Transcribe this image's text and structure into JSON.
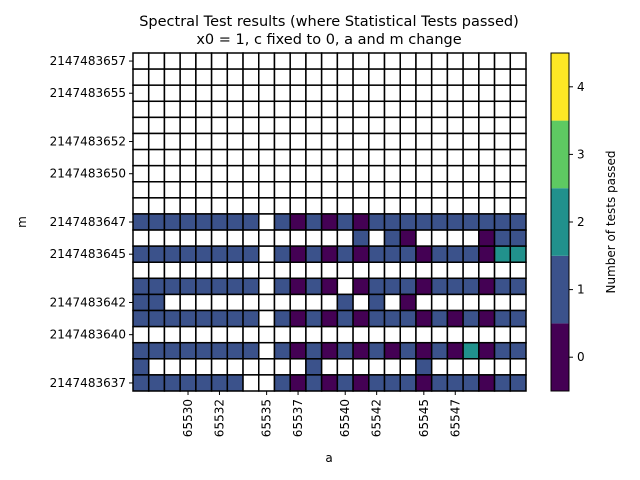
{
  "chart_data": {
    "type": "heatmap",
    "title_line1": "Spectral Test results (where Statistical Tests passed)",
    "title_line2": "x0 = 1, c fixed to 0, a and m change",
    "xlabel": "a",
    "ylabel": "m",
    "colorbar_label": "Number of tests passed",
    "colorbar_ticks": [
      "0",
      "1",
      "2",
      "3",
      "4"
    ],
    "colormap": [
      "#440154",
      "#3b528b",
      "#21918c",
      "#5ec962",
      "#fde725"
    ],
    "x_values": [
      65527,
      65528,
      65529,
      65530,
      65531,
      65532,
      65533,
      65534,
      65535,
      65536,
      65537,
      65538,
      65539,
      65540,
      65541,
      65542,
      65543,
      65544,
      65545,
      65546,
      65547,
      65548,
      65549,
      65550,
      65551
    ],
    "x_tick_labels": [
      {
        "value": 65530,
        "label": "65530"
      },
      {
        "value": 65532,
        "label": "65532"
      },
      {
        "value": 65535,
        "label": "65535"
      },
      {
        "value": 65537,
        "label": "65537"
      },
      {
        "value": 65540,
        "label": "65540"
      },
      {
        "value": 65542,
        "label": "65542"
      },
      {
        "value": 65545,
        "label": "65545"
      },
      {
        "value": 65547,
        "label": "65547"
      }
    ],
    "y_values": [
      2147483657,
      2147483656,
      2147483655,
      2147483654,
      2147483653,
      2147483652,
      2147483651,
      2147483650,
      2147483649,
      2147483648,
      2147483647,
      2147483646,
      2147483645,
      2147483644,
      2147483643,
      2147483642,
      2147483641,
      2147483640,
      2147483639,
      2147483638,
      2147483637
    ],
    "y_tick_labels": [
      {
        "value": 2147483657,
        "label": "2147483657"
      },
      {
        "value": 2147483655,
        "label": "2147483655"
      },
      {
        "value": 2147483652,
        "label": "2147483652"
      },
      {
        "value": 2147483650,
        "label": "2147483650"
      },
      {
        "value": 2147483647,
        "label": "2147483647"
      },
      {
        "value": 2147483645,
        "label": "2147483645"
      },
      {
        "value": 2147483642,
        "label": "2147483642"
      },
      {
        "value": 2147483640,
        "label": "2147483640"
      },
      {
        "value": 2147483637,
        "label": "2147483637"
      }
    ],
    "values": [
      [
        null,
        null,
        null,
        null,
        null,
        null,
        null,
        null,
        null,
        null,
        null,
        null,
        null,
        null,
        null,
        null,
        null,
        null,
        null,
        null,
        null,
        null,
        null,
        null,
        null
      ],
      [
        null,
        null,
        null,
        null,
        null,
        null,
        null,
        null,
        null,
        null,
        null,
        null,
        null,
        null,
        null,
        null,
        null,
        null,
        null,
        null,
        null,
        null,
        null,
        null,
        null
      ],
      [
        null,
        null,
        null,
        null,
        null,
        null,
        null,
        null,
        null,
        null,
        null,
        null,
        null,
        null,
        null,
        null,
        null,
        null,
        null,
        null,
        null,
        null,
        null,
        null,
        null
      ],
      [
        null,
        null,
        null,
        null,
        null,
        null,
        null,
        null,
        null,
        null,
        null,
        null,
        null,
        null,
        null,
        null,
        null,
        null,
        null,
        null,
        null,
        null,
        null,
        null,
        null
      ],
      [
        null,
        null,
        null,
        null,
        null,
        null,
        null,
        null,
        null,
        null,
        null,
        null,
        null,
        null,
        null,
        null,
        null,
        null,
        null,
        null,
        null,
        null,
        null,
        null,
        null
      ],
      [
        null,
        null,
        null,
        null,
        null,
        null,
        null,
        null,
        null,
        null,
        null,
        null,
        null,
        null,
        null,
        null,
        null,
        null,
        null,
        null,
        null,
        null,
        null,
        null,
        null
      ],
      [
        null,
        null,
        null,
        null,
        null,
        null,
        null,
        null,
        null,
        null,
        null,
        null,
        null,
        null,
        null,
        null,
        null,
        null,
        null,
        null,
        null,
        null,
        null,
        null,
        null
      ],
      [
        null,
        null,
        null,
        null,
        null,
        null,
        null,
        null,
        null,
        null,
        null,
        null,
        null,
        null,
        null,
        null,
        null,
        null,
        null,
        null,
        null,
        null,
        null,
        null,
        null
      ],
      [
        null,
        null,
        null,
        null,
        null,
        null,
        null,
        null,
        null,
        null,
        null,
        null,
        null,
        null,
        null,
        null,
        null,
        null,
        null,
        null,
        null,
        null,
        null,
        null,
        null
      ],
      [
        null,
        null,
        null,
        null,
        null,
        null,
        null,
        null,
        null,
        null,
        null,
        null,
        null,
        null,
        null,
        null,
        null,
        null,
        null,
        null,
        null,
        null,
        null,
        null,
        null
      ],
      [
        1,
        1,
        1,
        1,
        1,
        1,
        1,
        1,
        null,
        1,
        0,
        1,
        0,
        1,
        0,
        1,
        1,
        1,
        1,
        1,
        1,
        1,
        1,
        1,
        1
      ],
      [
        null,
        null,
        null,
        null,
        null,
        null,
        null,
        null,
        null,
        null,
        null,
        null,
        null,
        null,
        1,
        null,
        1,
        0,
        null,
        null,
        null,
        null,
        0,
        1,
        1
      ],
      [
        1,
        1,
        1,
        1,
        1,
        1,
        1,
        1,
        null,
        1,
        0,
        1,
        0,
        1,
        0,
        1,
        1,
        1,
        0,
        1,
        1,
        1,
        0,
        2,
        2
      ],
      [
        null,
        null,
        null,
        null,
        null,
        null,
        null,
        null,
        null,
        null,
        null,
        null,
        null,
        null,
        null,
        null,
        null,
        null,
        null,
        null,
        null,
        null,
        null,
        null,
        null
      ],
      [
        1,
        1,
        1,
        1,
        1,
        1,
        1,
        1,
        null,
        1,
        0,
        1,
        0,
        null,
        0,
        1,
        1,
        1,
        0,
        1,
        1,
        1,
        0,
        1,
        1
      ],
      [
        1,
        1,
        null,
        null,
        null,
        null,
        null,
        null,
        null,
        null,
        null,
        null,
        null,
        1,
        null,
        1,
        null,
        0,
        null,
        null,
        null,
        null,
        null,
        null,
        null
      ],
      [
        1,
        1,
        1,
        1,
        1,
        1,
        1,
        1,
        null,
        1,
        0,
        1,
        0,
        1,
        0,
        1,
        1,
        1,
        0,
        1,
        0,
        1,
        0,
        1,
        1
      ],
      [
        null,
        null,
        null,
        null,
        null,
        null,
        null,
        null,
        null,
        null,
        null,
        null,
        null,
        null,
        null,
        null,
        null,
        null,
        null,
        null,
        null,
        null,
        null,
        null,
        null
      ],
      [
        1,
        1,
        1,
        1,
        1,
        1,
        1,
        1,
        null,
        1,
        0,
        1,
        0,
        1,
        0,
        1,
        0,
        1,
        0,
        1,
        0,
        2,
        0,
        1,
        1
      ],
      [
        1,
        null,
        null,
        null,
        null,
        null,
        null,
        null,
        null,
        null,
        null,
        1,
        null,
        null,
        null,
        null,
        null,
        null,
        1,
        null,
        null,
        null,
        null,
        null,
        null
      ],
      [
        1,
        1,
        1,
        1,
        1,
        1,
        1,
        null,
        null,
        1,
        0,
        1,
        0,
        1,
        0,
        1,
        1,
        1,
        0,
        1,
        1,
        1,
        0,
        1,
        1
      ]
    ]
  }
}
